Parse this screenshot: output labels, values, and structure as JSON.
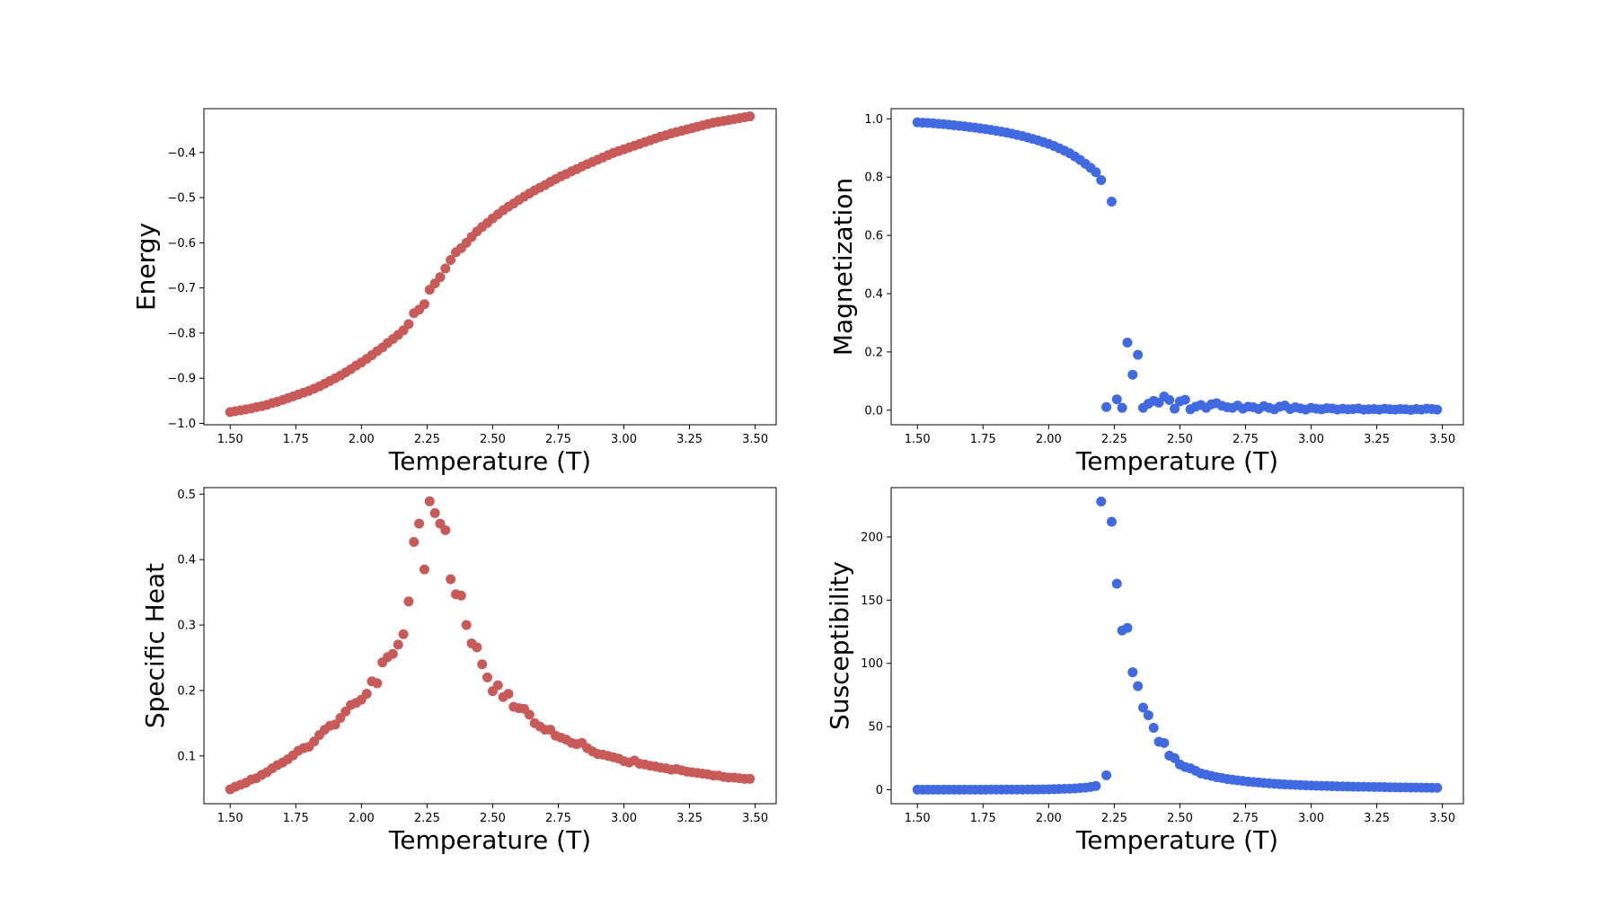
{
  "colors": {
    "energy": "#c85a5a",
    "magnetization": "#4169e1",
    "specific_heat": "#c85a5a",
    "susceptibility": "#4169e1"
  },
  "chart_data": [
    {
      "id": "energy",
      "type": "scatter",
      "title": "",
      "xlabel": "Temperature (T)",
      "ylabel": "Energy",
      "xlim": [
        1.4,
        3.58
      ],
      "ylim": [
        -1.003,
        -0.303
      ],
      "xticks": [
        "1.50",
        "1.75",
        "2.00",
        "2.25",
        "2.50",
        "2.75",
        "3.00",
        "3.25",
        "3.50"
      ],
      "yticks": [
        "−1.0",
        "−0.9",
        "−0.8",
        "−0.7",
        "−0.6",
        "−0.5",
        "−0.4"
      ],
      "color": "#c85a5a",
      "x": [
        1.5,
        1.52,
        1.54,
        1.56,
        1.58,
        1.6,
        1.62,
        1.64,
        1.66,
        1.68,
        1.7,
        1.72,
        1.74,
        1.76,
        1.78,
        1.8,
        1.82,
        1.84,
        1.86,
        1.88,
        1.9,
        1.92,
        1.94,
        1.96,
        1.98,
        2.0,
        2.02,
        2.04,
        2.06,
        2.08,
        2.1,
        2.12,
        2.14,
        2.16,
        2.18,
        2.2,
        2.22,
        2.24,
        2.26,
        2.28,
        2.3,
        2.32,
        2.34,
        2.36,
        2.38,
        2.4,
        2.42,
        2.44,
        2.46,
        2.48,
        2.5,
        2.52,
        2.54,
        2.56,
        2.58,
        2.6,
        2.62,
        2.64,
        2.66,
        2.68,
        2.7,
        2.72,
        2.74,
        2.76,
        2.78,
        2.8,
        2.82,
        2.84,
        2.86,
        2.88,
        2.9,
        2.92,
        2.94,
        2.96,
        2.98,
        3.0,
        3.02,
        3.04,
        3.06,
        3.08,
        3.1,
        3.12,
        3.14,
        3.16,
        3.18,
        3.2,
        3.22,
        3.24,
        3.26,
        3.28,
        3.3,
        3.32,
        3.34,
        3.36,
        3.38,
        3.4,
        3.42,
        3.44,
        3.46,
        3.48
      ],
      "y": [
        -0.975,
        -0.973,
        -0.971,
        -0.969,
        -0.967,
        -0.964,
        -0.962,
        -0.959,
        -0.955,
        -0.952,
        -0.948,
        -0.944,
        -0.94,
        -0.936,
        -0.932,
        -0.928,
        -0.923,
        -0.918,
        -0.912,
        -0.906,
        -0.9,
        -0.894,
        -0.887,
        -0.88,
        -0.872,
        -0.865,
        -0.857,
        -0.849,
        -0.84,
        -0.832,
        -0.822,
        -0.813,
        -0.804,
        -0.794,
        -0.78,
        -0.756,
        -0.748,
        -0.736,
        -0.704,
        -0.69,
        -0.676,
        -0.657,
        -0.638,
        -0.621,
        -0.612,
        -0.6,
        -0.587,
        -0.575,
        -0.565,
        -0.556,
        -0.546,
        -0.537,
        -0.528,
        -0.52,
        -0.513,
        -0.505,
        -0.498,
        -0.491,
        -0.484,
        -0.478,
        -0.472,
        -0.465,
        -0.459,
        -0.453,
        -0.448,
        -0.442,
        -0.437,
        -0.431,
        -0.426,
        -0.421,
        -0.416,
        -0.411,
        -0.406,
        -0.401,
        -0.397,
        -0.393,
        -0.389,
        -0.385,
        -0.381,
        -0.377,
        -0.373,
        -0.369,
        -0.365,
        -0.362,
        -0.358,
        -0.355,
        -0.352,
        -0.349,
        -0.346,
        -0.343,
        -0.34,
        -0.337,
        -0.334,
        -0.332,
        -0.33,
        -0.328,
        -0.326,
        -0.324,
        -0.322,
        -0.32
      ]
    },
    {
      "id": "magnetization",
      "type": "scatter",
      "title": "",
      "xlabel": "Temperature (T)",
      "ylabel": "Magnetization",
      "xlim": [
        1.4,
        3.58
      ],
      "ylim": [
        -0.05,
        1.035
      ],
      "xticks": [
        "1.50",
        "1.75",
        "2.00",
        "2.25",
        "2.50",
        "2.75",
        "3.00",
        "3.25",
        "3.50"
      ],
      "yticks": [
        "0.0",
        "0.2",
        "0.4",
        "0.6",
        "0.8",
        "1.0"
      ],
      "color": "#4169e1",
      "x": [
        1.5,
        1.52,
        1.54,
        1.56,
        1.58,
        1.6,
        1.62,
        1.64,
        1.66,
        1.68,
        1.7,
        1.72,
        1.74,
        1.76,
        1.78,
        1.8,
        1.82,
        1.84,
        1.86,
        1.88,
        1.9,
        1.92,
        1.94,
        1.96,
        1.98,
        2.0,
        2.02,
        2.04,
        2.06,
        2.08,
        2.1,
        2.12,
        2.14,
        2.16,
        2.18,
        2.2,
        2.22,
        2.24,
        2.26,
        2.28,
        2.3,
        2.32,
        2.34,
        2.36,
        2.38,
        2.4,
        2.42,
        2.44,
        2.46,
        2.48,
        2.5,
        2.52,
        2.54,
        2.56,
        2.58,
        2.6,
        2.62,
        2.64,
        2.66,
        2.68,
        2.7,
        2.72,
        2.74,
        2.76,
        2.78,
        2.8,
        2.82,
        2.84,
        2.86,
        2.88,
        2.9,
        2.92,
        2.94,
        2.96,
        2.98,
        3.0,
        3.02,
        3.04,
        3.06,
        3.08,
        3.1,
        3.12,
        3.14,
        3.16,
        3.18,
        3.2,
        3.22,
        3.24,
        3.26,
        3.28,
        3.3,
        3.32,
        3.34,
        3.36,
        3.38,
        3.4,
        3.42,
        3.44,
        3.46,
        3.48
      ],
      "y": [
        0.988,
        0.987,
        0.986,
        0.985,
        0.983,
        0.982,
        0.98,
        0.978,
        0.976,
        0.974,
        0.972,
        0.97,
        0.967,
        0.965,
        0.962,
        0.959,
        0.956,
        0.953,
        0.949,
        0.945,
        0.941,
        0.936,
        0.931,
        0.926,
        0.92,
        0.914,
        0.907,
        0.899,
        0.891,
        0.882,
        0.871,
        0.859,
        0.846,
        0.832,
        0.817,
        0.79,
        0.011,
        0.716,
        0.037,
        0.008,
        0.232,
        0.122,
        0.19,
        0.008,
        0.022,
        0.032,
        0.026,
        0.047,
        0.035,
        0.005,
        0.03,
        0.036,
        0.003,
        0.012,
        0.018,
        0.008,
        0.02,
        0.024,
        0.015,
        0.01,
        0.008,
        0.016,
        0.005,
        0.012,
        0.01,
        0.004,
        0.014,
        0.008,
        0.003,
        0.012,
        0.016,
        0.004,
        0.01,
        0.006,
        0.002,
        0.008,
        0.005,
        0.003,
        0.007,
        0.006,
        0.002,
        0.005,
        0.003,
        0.004,
        0.006,
        0.002,
        0.003,
        0.004,
        0.002,
        0.005,
        0.003,
        0.002,
        0.004,
        0.003,
        0.001,
        0.004,
        0.002,
        0.005,
        0.004,
        0.002
      ]
    },
    {
      "id": "specific_heat",
      "type": "scatter",
      "title": "",
      "xlabel": "Temperature (T)",
      "ylabel": "Specific Heat",
      "xlim": [
        1.4,
        3.58
      ],
      "ylim": [
        0.027,
        0.51
      ],
      "xticks": [
        "1.50",
        "1.75",
        "2.00",
        "2.25",
        "2.50",
        "2.75",
        "3.00",
        "3.25",
        "3.50"
      ],
      "yticks": [
        "0.1",
        "0.2",
        "0.3",
        "0.4",
        "0.5"
      ],
      "color": "#c85a5a",
      "x": [
        1.5,
        1.52,
        1.54,
        1.56,
        1.58,
        1.6,
        1.62,
        1.64,
        1.66,
        1.68,
        1.7,
        1.72,
        1.74,
        1.76,
        1.78,
        1.8,
        1.82,
        1.84,
        1.86,
        1.88,
        1.9,
        1.92,
        1.94,
        1.96,
        1.98,
        2.0,
        2.02,
        2.04,
        2.06,
        2.08,
        2.1,
        2.12,
        2.14,
        2.16,
        2.18,
        2.2,
        2.22,
        2.24,
        2.26,
        2.28,
        2.3,
        2.32,
        2.34,
        2.36,
        2.38,
        2.4,
        2.42,
        2.44,
        2.46,
        2.48,
        2.5,
        2.52,
        2.54,
        2.56,
        2.58,
        2.6,
        2.62,
        2.64,
        2.66,
        2.68,
        2.7,
        2.72,
        2.74,
        2.76,
        2.78,
        2.8,
        2.82,
        2.84,
        2.86,
        2.88,
        2.9,
        2.92,
        2.94,
        2.96,
        2.98,
        3.0,
        3.02,
        3.04,
        3.06,
        3.08,
        3.1,
        3.12,
        3.14,
        3.16,
        3.18,
        3.2,
        3.22,
        3.24,
        3.26,
        3.28,
        3.3,
        3.32,
        3.34,
        3.36,
        3.38,
        3.4,
        3.42,
        3.44,
        3.46,
        3.48
      ],
      "y": [
        0.049,
        0.053,
        0.056,
        0.059,
        0.064,
        0.066,
        0.071,
        0.075,
        0.081,
        0.086,
        0.09,
        0.095,
        0.101,
        0.108,
        0.112,
        0.114,
        0.122,
        0.132,
        0.14,
        0.146,
        0.148,
        0.158,
        0.168,
        0.178,
        0.181,
        0.186,
        0.195,
        0.214,
        0.211,
        0.243,
        0.251,
        0.256,
        0.27,
        0.286,
        0.336,
        0.427,
        0.455,
        0.385,
        0.489,
        0.471,
        0.455,
        0.445,
        0.37,
        0.347,
        0.345,
        0.3,
        0.272,
        0.266,
        0.24,
        0.22,
        0.199,
        0.208,
        0.19,
        0.195,
        0.175,
        0.173,
        0.172,
        0.163,
        0.15,
        0.145,
        0.14,
        0.14,
        0.131,
        0.128,
        0.125,
        0.12,
        0.118,
        0.12,
        0.112,
        0.107,
        0.103,
        0.102,
        0.1,
        0.098,
        0.096,
        0.092,
        0.09,
        0.093,
        0.088,
        0.087,
        0.085,
        0.084,
        0.082,
        0.081,
        0.079,
        0.08,
        0.078,
        0.076,
        0.075,
        0.074,
        0.073,
        0.072,
        0.07,
        0.07,
        0.068,
        0.067,
        0.067,
        0.066,
        0.065,
        0.065
      ]
    },
    {
      "id": "susceptibility",
      "type": "scatter",
      "title": "",
      "xlabel": "Temperature (T)",
      "ylabel": "Susceptibility",
      "xlim": [
        1.4,
        3.58
      ],
      "ylim": [
        -11,
        239
      ],
      "xticks": [
        "1.50",
        "1.75",
        "2.00",
        "2.25",
        "2.50",
        "2.75",
        "3.00",
        "3.25",
        "3.50"
      ],
      "yticks": [
        "0",
        "50",
        "100",
        "150",
        "200"
      ],
      "color": "#4169e1",
      "x": [
        1.5,
        1.52,
        1.54,
        1.56,
        1.58,
        1.6,
        1.62,
        1.64,
        1.66,
        1.68,
        1.7,
        1.72,
        1.74,
        1.76,
        1.78,
        1.8,
        1.82,
        1.84,
        1.86,
        1.88,
        1.9,
        1.92,
        1.94,
        1.96,
        1.98,
        2.0,
        2.02,
        2.04,
        2.06,
        2.08,
        2.1,
        2.12,
        2.14,
        2.16,
        2.18,
        2.2,
        2.22,
        2.24,
        2.26,
        2.28,
        2.3,
        2.32,
        2.34,
        2.36,
        2.38,
        2.4,
        2.42,
        2.44,
        2.46,
        2.48,
        2.5,
        2.52,
        2.54,
        2.56,
        2.58,
        2.6,
        2.62,
        2.64,
        2.66,
        2.68,
        2.7,
        2.72,
        2.74,
        2.76,
        2.78,
        2.8,
        2.82,
        2.84,
        2.86,
        2.88,
        2.9,
        2.92,
        2.94,
        2.96,
        2.98,
        3.0,
        3.02,
        3.04,
        3.06,
        3.08,
        3.1,
        3.12,
        3.14,
        3.16,
        3.18,
        3.2,
        3.22,
        3.24,
        3.26,
        3.28,
        3.3,
        3.32,
        3.34,
        3.36,
        3.38,
        3.4,
        3.42,
        3.44,
        3.46,
        3.48
      ],
      "y": [
        0.1,
        0.1,
        0.1,
        0.1,
        0.1,
        0.1,
        0.1,
        0.1,
        0.1,
        0.1,
        0.1,
        0.1,
        0.1,
        0.1,
        0.2,
        0.2,
        0.2,
        0.2,
        0.2,
        0.2,
        0.2,
        0.3,
        0.3,
        0.3,
        0.4,
        0.4,
        0.5,
        0.6,
        0.8,
        0.9,
        1.1,
        1.4,
        1.7,
        2.2,
        3.0,
        228,
        11.5,
        212,
        163,
        126,
        128,
        93,
        82,
        65,
        59,
        49,
        38,
        37,
        27,
        25,
        20,
        18,
        17,
        15,
        13,
        12,
        11,
        10,
        9.3,
        8.5,
        8,
        7.5,
        7,
        6.5,
        6.1,
        5.8,
        5.4,
        5.1,
        4.8,
        4.5,
        4.3,
        4.1,
        3.9,
        3.7,
        3.5,
        3.4,
        3.2,
        3.1,
        3,
        2.9,
        2.8,
        2.7,
        2.6,
        2.5,
        2.4,
        2.4,
        2.3,
        2.2,
        2.2,
        2.1,
        2,
        2,
        1.9,
        1.9,
        1.8,
        1.8,
        1.7,
        1.7,
        1.6,
        1.6
      ]
    }
  ]
}
